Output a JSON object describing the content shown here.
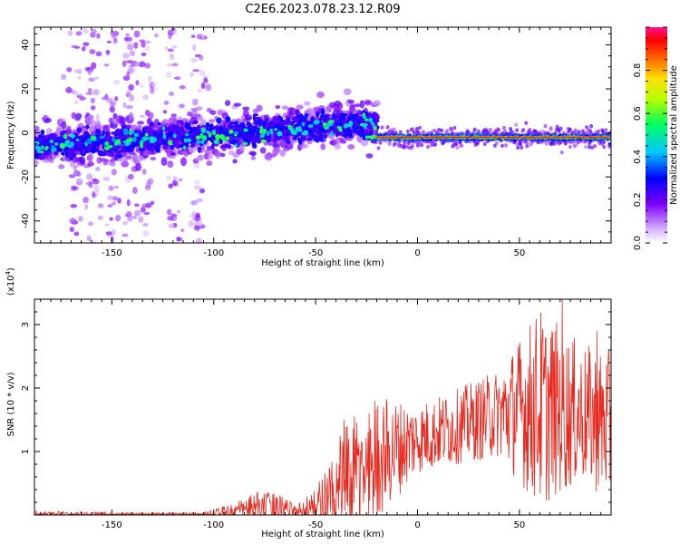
{
  "title": "C2E6.2023.078.23.12.R09",
  "chart_data": [
    {
      "type": "heatmap",
      "xlabel": "Height of straight line (km)",
      "ylabel": "Frequency (Hz)",
      "xlim": [
        -188,
        95
      ],
      "ylim": [
        -50,
        48
      ],
      "xticks": [
        -150,
        -100,
        -50,
        0,
        50
      ],
      "yticks": [
        -40,
        -20,
        0,
        20,
        40
      ],
      "colorbar": {
        "label": "Normalized spectral amplitude",
        "range": [
          0,
          1
        ],
        "ticks": [
          0.0,
          0.2,
          0.4,
          0.6,
          0.8
        ],
        "colormap": [
          "#ffffff",
          "#d9b8ff",
          "#8000ff",
          "#0000ff",
          "#00c8ff",
          "#00ff60",
          "#b0ff00",
          "#ffe000",
          "#ff6000",
          "#ff0000",
          "#ff1090"
        ]
      },
      "features": {
        "noisy_band": {
          "x_range": [
            -188,
            -20
          ],
          "center_hz": [
            [
              -188,
              -6
            ],
            [
              -100,
              -1
            ],
            [
              -60,
              2
            ],
            [
              -30,
              4
            ]
          ],
          "halfwidth_hz": 6
        },
        "narrow_band": {
          "x_range": [
            -25,
            95
          ],
          "center_hz": -2,
          "halfwidth_hz": 2,
          "peak_amplitude": 0.95
        },
        "scatter_clusters_x": [
          -168,
          -160,
          -150,
          -140,
          -132,
          -120,
          -108
        ]
      },
      "grid": false
    },
    {
      "type": "line",
      "xlabel": "Height of straight line (km)",
      "ylabel": "SNR (10 * v/v)",
      "yscale_label": "(x10",
      "yscale_exp": "4",
      "yscale_close": ")",
      "xlim": [
        -188,
        95
      ],
      "ylim": [
        0,
        3.4
      ],
      "xticks": [
        -150,
        -100,
        -50,
        0,
        50
      ],
      "yticks": [
        1,
        2,
        3
      ],
      "color": "#e8281e",
      "envelope": {
        "x": [
          -188,
          -150,
          -105,
          -100,
          -90,
          -80,
          -70,
          -60,
          -50,
          -45,
          -40,
          -30,
          -20,
          0,
          20,
          40,
          60,
          80,
          95
        ],
        "baseline": [
          0.02,
          0.01,
          0.01,
          0.02,
          0.05,
          0.1,
          0.08,
          0.05,
          0.1,
          0.2,
          0.4,
          0.6,
          0.9,
          1.2,
          1.4,
          1.6,
          1.7,
          1.6,
          1.4
        ],
        "amplitude": [
          0.05,
          0.03,
          0.03,
          0.08,
          0.15,
          0.25,
          0.3,
          0.1,
          0.35,
          0.6,
          0.8,
          1.0,
          1.0,
          0.55,
          0.6,
          0.7,
          1.6,
          1.1,
          1.2
        ]
      },
      "peaks": [
        {
          "x": -36,
          "y": 1.5
        },
        {
          "x": -21,
          "y": 1.8
        },
        {
          "x": 63,
          "y": 2.8
        },
        {
          "x": 71,
          "y": 3.4
        },
        {
          "x": 88,
          "y": 2.9
        }
      ],
      "grid": false
    }
  ]
}
